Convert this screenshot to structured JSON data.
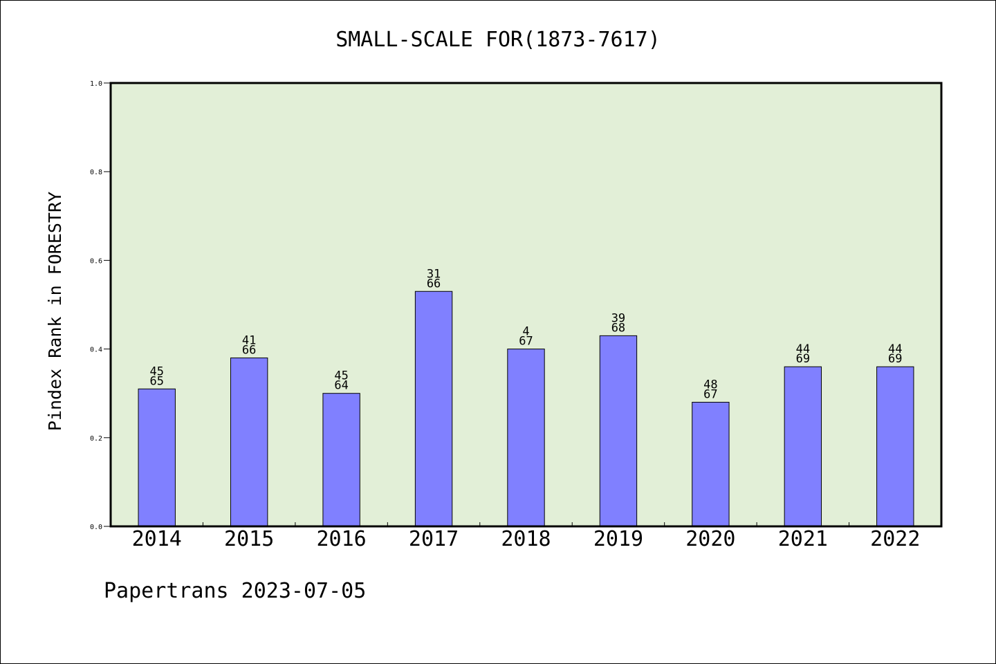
{
  "chart_data": {
    "type": "bar",
    "title": "SMALL-SCALE FOR(1873-7617)",
    "xlabel": "",
    "ylabel": "Pindex Rank in FORESTRY",
    "categories": [
      "2014",
      "2015",
      "2016",
      "2017",
      "2018",
      "2019",
      "2020",
      "2021",
      "2022"
    ],
    "values": [
      0.31,
      0.38,
      0.3,
      0.53,
      0.4,
      0.43,
      0.28,
      0.36,
      0.36
    ],
    "bar_labels": [
      {
        "rank": "45",
        "total": "65"
      },
      {
        "rank": "41",
        "total": "66"
      },
      {
        "rank": "45",
        "total": "64"
      },
      {
        "rank": "31",
        "total": "66"
      },
      {
        "rank": "4",
        "total": "67"
      },
      {
        "rank": "39",
        "total": "68"
      },
      {
        "rank": "48",
        "total": "67"
      },
      {
        "rank": "44",
        "total": "69"
      },
      {
        "rank": "44",
        "total": "69"
      }
    ],
    "yticks": [
      "0.0",
      "0.2",
      "0.4",
      "0.6",
      "0.8",
      "1.0"
    ],
    "ylim": [
      0,
      1.0
    ],
    "grid": false,
    "colors": {
      "bar": "#8080ff",
      "plot_background": "#e2efd7",
      "axis": "#000000"
    }
  },
  "footer": {
    "source": "Papertrans 2023-07-05"
  }
}
